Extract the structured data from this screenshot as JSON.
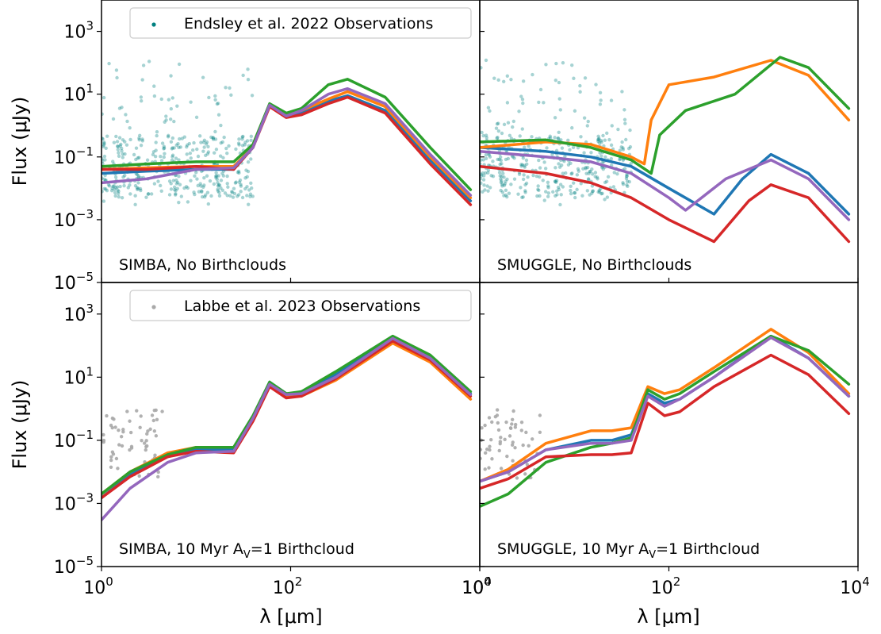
{
  "figure": {
    "ylabel": "Flux (μJy)",
    "xlabel": "λ [μm]",
    "xscale": "log",
    "yscale": "log",
    "xlim": [
      1,
      10000
    ],
    "ylim": [
      1e-05,
      10000
    ],
    "x_ticks": [
      {
        "base": "10",
        "exp": "0"
      },
      {
        "base": "10",
        "exp": "2"
      },
      {
        "base": "10",
        "exp": "4"
      }
    ],
    "y_ticks": [
      {
        "base": "10",
        "exp": "−5"
      },
      {
        "base": "10",
        "exp": "−3"
      },
      {
        "base": "10",
        "exp": "−1"
      },
      {
        "base": "10",
        "exp": "1"
      },
      {
        "base": "10",
        "exp": "3"
      }
    ],
    "colors": {
      "blue": "#1f77b4",
      "orange": "#ff7f0e",
      "green": "#2ca02c",
      "red": "#d62728",
      "purple": "#9467bd",
      "teal": "#008080",
      "grey": "#a9a9a9"
    }
  },
  "chart_data": [
    {
      "type": "line",
      "panel": "top-left",
      "label": "SIMBA, No Birthclouds",
      "legend": {
        "text": "Endsley et al. 2022 Observations",
        "placement": "top",
        "marker_color": "#008080"
      },
      "observations": {
        "color": "#008080",
        "x_range": [
          1.0,
          40.0
        ],
        "y_range": [
          0.003,
          130.0
        ]
      },
      "series": [
        {
          "color": "#1f77b4",
          "x": [
            1,
            3,
            10,
            25,
            40,
            60,
            90,
            130,
            250,
            400,
            1000,
            3000,
            8000
          ],
          "y": [
            0.03,
            0.035,
            0.04,
            0.04,
            0.2,
            4.5,
            2.0,
            2.5,
            6.0,
            9.0,
            3.0,
            0.08,
            0.004
          ]
        },
        {
          "color": "#ff7f0e",
          "x": [
            1,
            3,
            10,
            25,
            40,
            60,
            90,
            130,
            250,
            400,
            1000,
            3000,
            8000
          ],
          "y": [
            0.04,
            0.045,
            0.05,
            0.05,
            0.2,
            4.5,
            2.2,
            3.0,
            7.0,
            12.0,
            4.0,
            0.1,
            0.005
          ]
        },
        {
          "color": "#2ca02c",
          "x": [
            1,
            3,
            10,
            25,
            40,
            60,
            90,
            130,
            250,
            400,
            1000,
            3000,
            8000
          ],
          "y": [
            0.05,
            0.06,
            0.07,
            0.07,
            0.25,
            5.0,
            2.5,
            3.5,
            20.0,
            30.0,
            8.0,
            0.2,
            0.009
          ]
        },
        {
          "color": "#d62728",
          "x": [
            1,
            3,
            10,
            25,
            40,
            60,
            90,
            130,
            250,
            400,
            1000,
            3000,
            8000
          ],
          "y": [
            0.04,
            0.04,
            0.05,
            0.04,
            0.2,
            4.0,
            1.8,
            2.2,
            5.0,
            8.0,
            2.5,
            0.06,
            0.003
          ]
        },
        {
          "color": "#9467bd",
          "x": [
            1,
            3,
            10,
            25,
            40,
            60,
            90,
            130,
            250,
            400,
            1000,
            3000,
            8000
          ],
          "y": [
            0.015,
            0.02,
            0.04,
            0.045,
            0.2,
            4.5,
            2.0,
            3.0,
            10.0,
            15.0,
            5.0,
            0.12,
            0.006
          ]
        }
      ]
    },
    {
      "type": "line",
      "panel": "top-right",
      "label": "SMUGGLE, No Birthclouds",
      "observations": {
        "color": "#008080",
        "x_range": [
          1.0,
          40.0
        ],
        "y_range": [
          0.003,
          130.0
        ]
      },
      "series": [
        {
          "color": "#1f77b4",
          "x": [
            1,
            5,
            15,
            40,
            100,
            300,
            600,
            1200,
            3000,
            8000
          ],
          "y": [
            0.2,
            0.15,
            0.1,
            0.05,
            0.01,
            0.0015,
            0.02,
            0.12,
            0.03,
            0.0015
          ]
        },
        {
          "color": "#ff7f0e",
          "x": [
            1,
            5,
            15,
            40,
            55,
            65,
            100,
            300,
            1200,
            3000,
            8000
          ],
          "y": [
            0.2,
            0.3,
            0.25,
            0.1,
            0.06,
            1.5,
            20.0,
            35.0,
            120.0,
            40.0,
            1.5
          ]
        },
        {
          "color": "#2ca02c",
          "x": [
            1,
            5,
            15,
            40,
            65,
            80,
            150,
            500,
            1500,
            3000,
            8000
          ],
          "y": [
            0.3,
            0.35,
            0.2,
            0.08,
            0.03,
            0.5,
            3.0,
            10.0,
            150.0,
            70.0,
            3.5
          ]
        },
        {
          "color": "#d62728",
          "x": [
            1,
            5,
            15,
            40,
            100,
            300,
            700,
            1200,
            3000,
            8000
          ],
          "y": [
            0.05,
            0.03,
            0.015,
            0.005,
            0.001,
            0.0002,
            0.004,
            0.013,
            0.005,
            0.0002
          ]
        },
        {
          "color": "#9467bd",
          "x": [
            1,
            5,
            15,
            40,
            100,
            150,
            400,
            1200,
            3000,
            8000
          ],
          "y": [
            0.15,
            0.1,
            0.07,
            0.03,
            0.005,
            0.002,
            0.02,
            0.08,
            0.02,
            0.001
          ]
        }
      ]
    },
    {
      "type": "line",
      "panel": "bottom-left",
      "label": "SIMBA, 10 Myr A_V=1 Birthcloud",
      "legend": {
        "text": "Labbe et al. 2023 Observations",
        "placement": "top",
        "marker_color": "#a9a9a9"
      },
      "observations": {
        "color": "#a9a9a9",
        "x_range": [
          1.0,
          4.5
        ],
        "y_range": [
          0.005,
          1.0
        ]
      },
      "series": [
        {
          "color": "#1f77b4",
          "x": [
            1,
            2,
            5,
            10,
            25,
            40,
            60,
            90,
            130,
            300,
            1200,
            3000,
            8000
          ],
          "y": [
            0.0015,
            0.008,
            0.03,
            0.05,
            0.05,
            0.5,
            7.0,
            3.0,
            3.0,
            12.0,
            180.0,
            40.0,
            3.0
          ]
        },
        {
          "color": "#ff7f0e",
          "x": [
            1,
            2,
            5,
            10,
            25,
            40,
            60,
            90,
            130,
            300,
            1200,
            3000,
            8000
          ],
          "y": [
            0.002,
            0.01,
            0.04,
            0.06,
            0.06,
            0.5,
            6.0,
            2.5,
            2.5,
            8.0,
            120.0,
            30.0,
            2.0
          ]
        },
        {
          "color": "#2ca02c",
          "x": [
            1,
            2,
            5,
            10,
            25,
            40,
            60,
            90,
            130,
            300,
            1200,
            3000,
            8000
          ],
          "y": [
            0.002,
            0.01,
            0.035,
            0.06,
            0.06,
            0.6,
            7.0,
            3.0,
            3.5,
            15.0,
            200.0,
            50.0,
            3.5
          ]
        },
        {
          "color": "#d62728",
          "x": [
            1,
            2,
            5,
            10,
            25,
            40,
            60,
            90,
            130,
            300,
            1200,
            3000,
            8000
          ],
          "y": [
            0.0015,
            0.007,
            0.03,
            0.045,
            0.04,
            0.4,
            5.0,
            2.2,
            2.5,
            9.0,
            140.0,
            35.0,
            2.5
          ]
        },
        {
          "color": "#9467bd",
          "x": [
            1,
            2,
            5,
            10,
            25,
            40,
            60,
            90,
            130,
            300,
            1200,
            3000,
            8000
          ],
          "y": [
            0.0003,
            0.003,
            0.02,
            0.04,
            0.045,
            0.5,
            6.0,
            2.8,
            3.0,
            10.0,
            170.0,
            40.0,
            2.8
          ]
        }
      ]
    },
    {
      "type": "line",
      "panel": "bottom-right",
      "label": "SMUGGLE, 10 Myr A_V=1 Birthcloud",
      "observations": {
        "color": "#a9a9a9",
        "x_range": [
          1.0,
          4.5
        ],
        "y_range": [
          0.005,
          1.0
        ]
      },
      "series": [
        {
          "color": "#1f77b4",
          "x": [
            1,
            2,
            5,
            15,
            25,
            40,
            60,
            90,
            130,
            300,
            1200,
            3000,
            8000
          ],
          "y": [
            0.005,
            0.01,
            0.05,
            0.1,
            0.1,
            0.15,
            3.0,
            1.5,
            2.0,
            10.0,
            200.0,
            40.0,
            2.5
          ]
        },
        {
          "color": "#ff7f0e",
          "x": [
            1,
            2,
            5,
            15,
            25,
            40,
            60,
            90,
            130,
            300,
            1200,
            3000,
            8000
          ],
          "y": [
            0.005,
            0.012,
            0.08,
            0.2,
            0.2,
            0.25,
            5.0,
            3.0,
            4.0,
            20.0,
            330.0,
            60.0,
            3.0
          ]
        },
        {
          "color": "#2ca02c",
          "x": [
            1,
            2,
            5,
            15,
            25,
            40,
            60,
            90,
            130,
            300,
            1200,
            3000,
            8000
          ],
          "y": [
            0.0008,
            0.002,
            0.02,
            0.06,
            0.08,
            0.12,
            4.0,
            2.0,
            3.0,
            15.0,
            200.0,
            70.0,
            6.0
          ]
        },
        {
          "color": "#d62728",
          "x": [
            1,
            2,
            5,
            15,
            25,
            40,
            60,
            90,
            130,
            300,
            1200,
            3000,
            8000
          ],
          "y": [
            0.003,
            0.006,
            0.03,
            0.035,
            0.035,
            0.04,
            1.5,
            0.6,
            0.8,
            5.0,
            50.0,
            12.0,
            0.7
          ]
        },
        {
          "color": "#9467bd",
          "x": [
            1,
            2,
            5,
            15,
            25,
            40,
            60,
            90,
            130,
            300,
            1200,
            3000,
            8000
          ],
          "y": [
            0.005,
            0.01,
            0.05,
            0.08,
            0.08,
            0.1,
            2.5,
            1.2,
            2.0,
            10.0,
            180.0,
            40.0,
            2.5
          ]
        }
      ]
    }
  ]
}
